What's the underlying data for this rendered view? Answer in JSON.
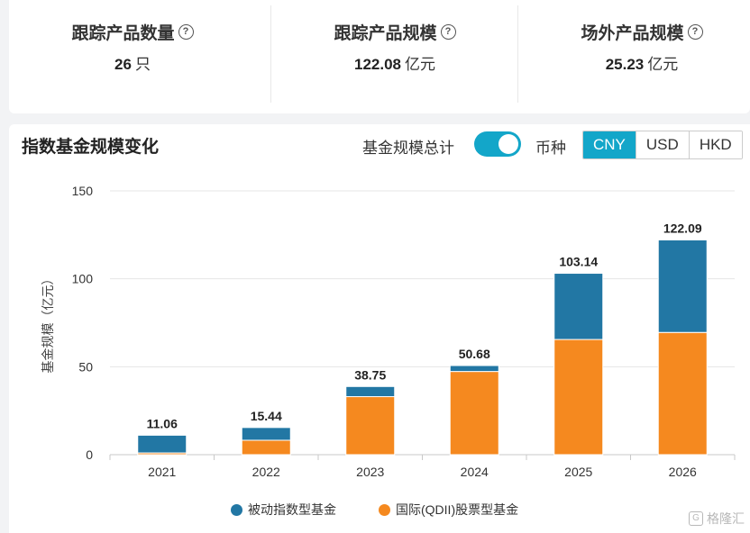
{
  "stats": [
    {
      "label": "跟踪产品数量",
      "value": "26",
      "unit": "只"
    },
    {
      "label": "跟踪产品规模",
      "value": "122.08",
      "unit": "亿元"
    },
    {
      "label": "场外产品规模",
      "value": "25.23",
      "unit": "亿元"
    }
  ],
  "help_icon": "help-circle-icon",
  "chart_section": {
    "title": "指数基金规模变化",
    "toggle_label": "基金规模总计",
    "toggle_on": true,
    "currency_label": "币种",
    "currencies": [
      "CNY",
      "USD",
      "HKD"
    ],
    "active_currency": "CNY"
  },
  "watermark": "格隆汇",
  "colors": {
    "passive": "#2277a4",
    "qdii": "#f5891f",
    "accent": "#13a6c9"
  },
  "chart_data": {
    "type": "bar",
    "stacked": true,
    "categories": [
      "2021",
      "2022",
      "2023",
      "2024",
      "2025",
      "2026"
    ],
    "series": [
      {
        "name": "国际(QDII)股票型基金",
        "values": [
          1.0,
          8.2,
          33.0,
          47.3,
          65.5,
          69.5
        ]
      },
      {
        "name": "被动指数型基金",
        "values": [
          10.06,
          7.24,
          5.75,
          3.38,
          37.64,
          52.59
        ]
      }
    ],
    "totals": [
      "11.06",
      "15.44",
      "38.75",
      "50.68",
      "103.14",
      "122.09"
    ],
    "ylabel": "基金规模（亿元）",
    "yticks": [
      0,
      50,
      100,
      150
    ],
    "ylim": [
      0,
      150
    ],
    "grid": true,
    "legend_position": "bottom",
    "legend": [
      "被动指数型基金",
      "国际(QDII)股票型基金"
    ]
  }
}
